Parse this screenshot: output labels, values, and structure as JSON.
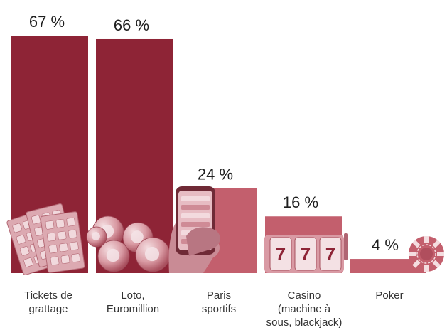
{
  "chart_data": {
    "type": "bar",
    "categories": [
      [
        "Tickets de",
        "grattage"
      ],
      [
        "Loto,",
        "Euromillion"
      ],
      [
        "Paris",
        "sportifs"
      ],
      [
        "Casino",
        "(machine à",
        "sous, blackjack)"
      ],
      [
        "Poker"
      ]
    ],
    "values": [
      67,
      66,
      24,
      16,
      4
    ],
    "value_labels": [
      "67 %",
      "66 %",
      "24 %",
      "16 %",
      "4 %"
    ],
    "illustrations": [
      "scratch-tickets-icon",
      "lottery-balls-icon",
      "smartphone-betting-icon",
      "slot-machine-icon",
      "poker-chip-icon"
    ],
    "colors": [
      "#8e2436",
      "#8e2436",
      "#c35f6d",
      "#c35f6d",
      "#c35f6d"
    ],
    "ylim": [
      0,
      67
    ],
    "grid": false,
    "legend": "none"
  }
}
